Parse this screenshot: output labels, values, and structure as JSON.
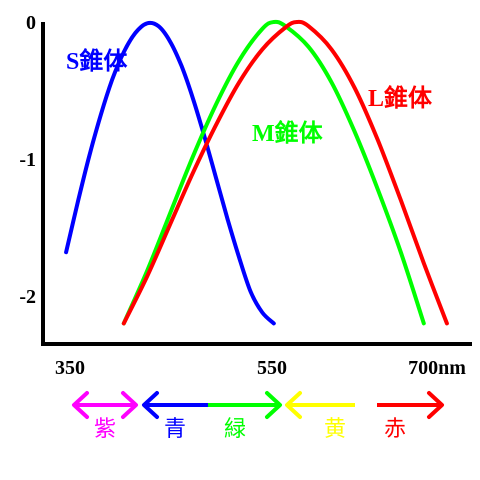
{
  "chart_data": {
    "type": "line",
    "title": "",
    "xlabel": "",
    "ylabel": "",
    "x_unit": "nm",
    "xlim": [
      350,
      720
    ],
    "ylim": [
      -2.35,
      0.0
    ],
    "x_ticks": [
      {
        "value": 350,
        "label": "350"
      },
      {
        "value": 550,
        "label": "550"
      },
      {
        "value": 700,
        "label": "700nm"
      }
    ],
    "y_ticks": [
      {
        "value": 0,
        "label": "0"
      },
      {
        "value": -1,
        "label": "-1"
      },
      {
        "value": -2,
        "label": "-2"
      }
    ],
    "grid": false,
    "series": [
      {
        "name": "S錐体",
        "color": "#0000ff",
        "x": [
          370,
          380,
          390,
          400,
          410,
          420,
          430,
          440,
          450,
          460,
          470,
          480,
          490,
          500,
          510,
          520,
          530,
          540,
          550
        ],
        "y": [
          -1.68,
          -1.32,
          -0.98,
          -0.68,
          -0.42,
          -0.22,
          -0.08,
          -0.01,
          -0.03,
          -0.14,
          -0.32,
          -0.56,
          -0.84,
          -1.14,
          -1.44,
          -1.72,
          -1.97,
          -2.12,
          -2.2
        ]
      },
      {
        "name": "M錐体",
        "color": "#00ff00",
        "x": [
          420,
          440,
          460,
          480,
          500,
          520,
          540,
          550,
          560,
          580,
          600,
          620,
          640,
          660,
          680
        ],
        "y": [
          -2.2,
          -1.82,
          -1.4,
          -0.98,
          -0.6,
          -0.28,
          -0.05,
          0.0,
          -0.03,
          -0.18,
          -0.44,
          -0.8,
          -1.22,
          -1.68,
          -2.2
        ]
      },
      {
        "name": "L錐体",
        "color": "#ff0000",
        "x": [
          420,
          440,
          460,
          480,
          500,
          520,
          540,
          560,
          570,
          580,
          600,
          620,
          640,
          660,
          680,
          700
        ],
        "y": [
          -2.2,
          -1.86,
          -1.48,
          -1.1,
          -0.75,
          -0.44,
          -0.2,
          -0.04,
          0.0,
          -0.03,
          -0.2,
          -0.48,
          -0.86,
          -1.3,
          -1.76,
          -2.2
        ]
      }
    ]
  },
  "color_bands": [
    {
      "label": "紫",
      "color": "#ff00ff",
      "arrow": "both"
    },
    {
      "label": "青",
      "color": "#0000ff",
      "arrow": "left"
    },
    {
      "label": "緑",
      "color": "#00ff00",
      "arrow": "right"
    },
    {
      "label": "黄",
      "color": "#ffff00",
      "arrow": "left"
    },
    {
      "label": "赤",
      "color": "#ff0000",
      "arrow": "right"
    }
  ]
}
